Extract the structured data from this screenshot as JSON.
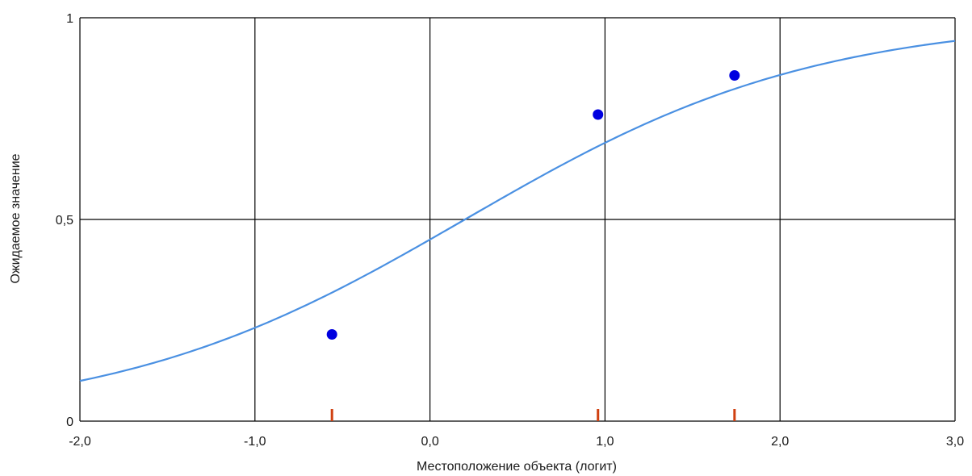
{
  "chart_data": {
    "type": "scatter",
    "xlabel": "Местоположение объекта (логит)",
    "ylabel": "Ожидаемое значение",
    "xlim": [
      -2.0,
      3.0
    ],
    "ylim": [
      0,
      1
    ],
    "x_ticks": [
      {
        "value": -2.0,
        "label": "-2,0"
      },
      {
        "value": -1.0,
        "label": "-1,0"
      },
      {
        "value": 0.0,
        "label": "0,0"
      },
      {
        "value": 1.0,
        "label": "1,0"
      },
      {
        "value": 2.0,
        "label": "2,0"
      },
      {
        "value": 3.0,
        "label": "3,0"
      }
    ],
    "y_ticks": [
      {
        "value": 0,
        "label": "0"
      },
      {
        "value": 0.5,
        "label": "0,5"
      },
      {
        "value": 1,
        "label": "1"
      }
    ],
    "grid": true,
    "curve": {
      "kind": "logistic",
      "location": 0.2,
      "slope": 1.0,
      "color": "#4a90e2"
    },
    "points": [
      {
        "x": -0.56,
        "y": 0.215
      },
      {
        "x": 0.96,
        "y": 0.76
      },
      {
        "x": 1.74,
        "y": 0.857
      }
    ],
    "point_color": "#0000e0",
    "markers": [
      {
        "x": -0.56
      },
      {
        "x": 0.96
      },
      {
        "x": 1.74
      }
    ],
    "marker_color": "#d04010",
    "gridline_color": "#000000"
  }
}
